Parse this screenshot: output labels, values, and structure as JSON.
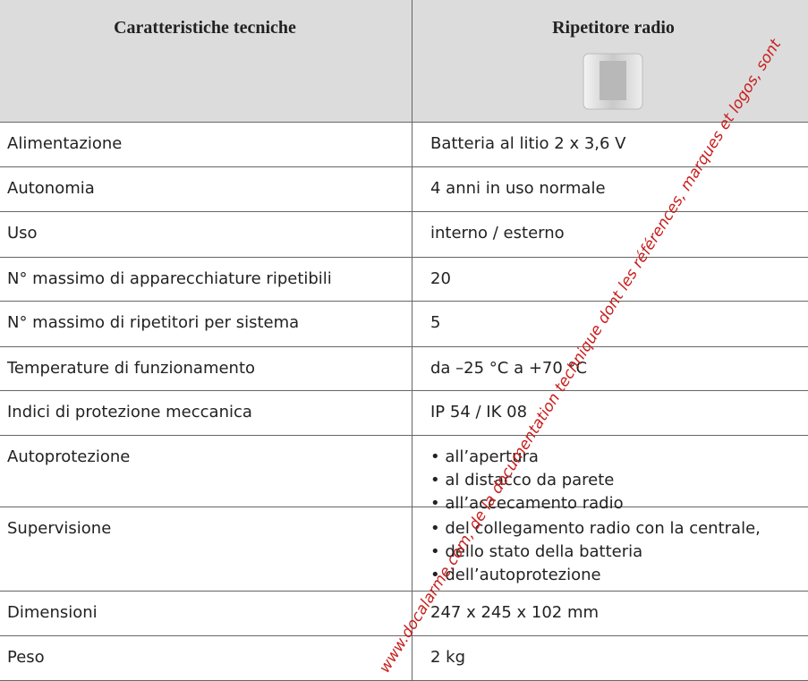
{
  "table": {
    "header": [
      "Caratteristiche tecniche",
      "Ripetitore radio"
    ],
    "rows": [
      [
        "Alimentazione",
        [
          "Batteria al litio 2 x 3,6 V"
        ]
      ],
      [
        "Autonomia",
        [
          "4 anni in uso normale"
        ]
      ],
      [
        "Uso",
        [
          "interno / esterno"
        ]
      ],
      [
        "N° massimo di apparecchiature ripetibili",
        [
          "20"
        ]
      ],
      [
        "N° massimo di ripetitori per sistema",
        [
          "5"
        ]
      ],
      [
        "Temperature di funzionamento",
        [
          "da –25 °C a +70 °C"
        ]
      ],
      [
        "Indici di protezione meccanica",
        [
          "IP 54 / IK 08"
        ]
      ],
      [
        "Autoprotezione",
        [
          "• all’apertura",
          "• al distacco da parete",
          "• all’accecamento radio"
        ]
      ],
      [
        "Supervisione",
        [
          "• del collegamento radio con la centrale,",
          "• dello stato della batteria",
          "• dell’autoprotezione"
        ]
      ],
      [
        "Dimensioni",
        [
          "247 x 245 x 102 mm"
        ]
      ],
      [
        "Peso",
        [
          "2 kg"
        ]
      ]
    ]
  },
  "watermark": "www.docalarme.com, de la documentation technique dont les références, marques et logos, sont"
}
